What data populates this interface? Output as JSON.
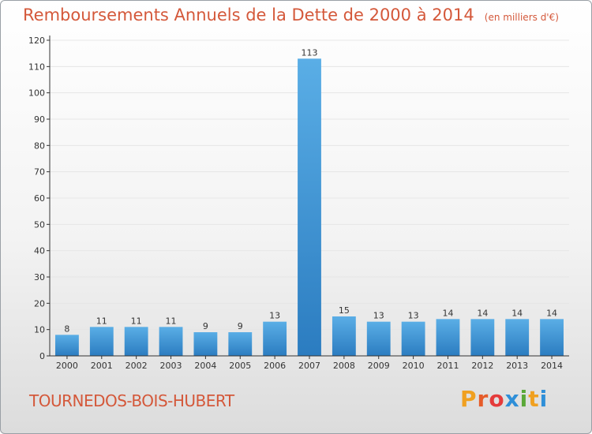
{
  "title": "Remboursements Annuels de la Dette de 2000 à 2014",
  "unit_note": "(en milliers d'€)",
  "commune": "TOURNEDOS-BOIS-HUBERT",
  "brand": {
    "letters": [
      "P",
      "r",
      "o",
      "x",
      "i",
      "t",
      "i"
    ],
    "colors": [
      "#f0a020",
      "#e65c2a",
      "#e53b3b",
      "#2f8fd8",
      "#5aa838",
      "#f0a020",
      "#2f8fd8"
    ]
  },
  "colors": {
    "bar_top": "#5aaee6",
    "bar_bottom": "#2b7cc0",
    "axis": "#333333",
    "grid": "#e6e6e6"
  },
  "chart_data": {
    "type": "bar",
    "title": "Remboursements Annuels de la Dette de 2000 à 2014",
    "xlabel": "",
    "ylabel": "en milliers d'€",
    "ylim": [
      0,
      120
    ],
    "yticks": [
      0,
      10,
      20,
      30,
      40,
      50,
      60,
      70,
      80,
      90,
      100,
      110,
      120
    ],
    "categories": [
      "2000",
      "2001",
      "2002",
      "2003",
      "2004",
      "2005",
      "2006",
      "2007",
      "2008",
      "2009",
      "2010",
      "2011",
      "2012",
      "2013",
      "2014"
    ],
    "values": [
      8,
      11,
      11,
      11,
      9,
      9,
      13,
      113,
      15,
      13,
      13,
      14,
      14,
      14,
      14
    ],
    "data_labels": [
      "8",
      "11",
      "11",
      "11",
      "9",
      "9",
      "13",
      "113",
      "15",
      "13",
      "13",
      "14",
      "14",
      "14",
      "14"
    ],
    "grid": true
  }
}
